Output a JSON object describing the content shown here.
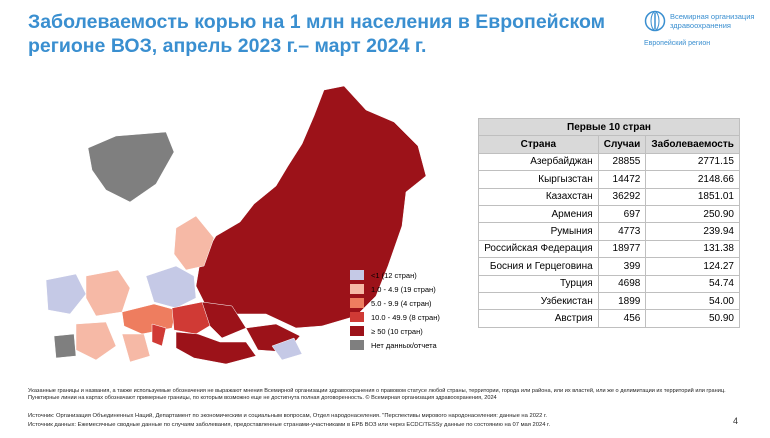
{
  "title_lines": [
    "Заболеваемость корью на 1 млн населения в Европейском",
    "регионе ВОЗ, апрель 2023 г.– март 2024 г."
  ],
  "logo": {
    "name_lines": [
      "Всемирная организация",
      "здравоохранения"
    ],
    "region": "Европейский регион"
  },
  "table": {
    "caption": "Первые 10 стран",
    "header": [
      "Страна",
      "Случаи",
      "Заболеваемость"
    ],
    "rows": [
      [
        "Азербайджан",
        "28855",
        "2771.15"
      ],
      [
        "Кыргызстан",
        "14472",
        "2148.66"
      ],
      [
        "Казахстан",
        "36292",
        "1851.01"
      ],
      [
        "Армения",
        "697",
        "250.90"
      ],
      [
        "Румыния",
        "4773",
        "239.94"
      ],
      [
        "Российская Федерация",
        "18977",
        "131.38"
      ],
      [
        "Босния и Герцеговина",
        "399",
        "124.27"
      ],
      [
        "Турция",
        "4698",
        "54.74"
      ],
      [
        "Узбекистан",
        "1899",
        "54.00"
      ],
      [
        "Австрия",
        "456",
        "50.90"
      ]
    ]
  },
  "legend": [
    {
      "label": "<1 (12 стран)",
      "color": "#c5c9e6"
    },
    {
      "label": "1.0 - 4.9 (19 стран)",
      "color": "#f6b9a6"
    },
    {
      "label": "5.0 - 9.9 (4 стран)",
      "color": "#ee7d5f"
    },
    {
      "label": "10.0 - 49.9 (8 стран)",
      "color": "#d03a35"
    },
    {
      "label": "≥ 50 (10 стран)",
      "color": "#9c1219"
    },
    {
      "label": "Нет данных/отчета",
      "color": "#7f7f7f"
    }
  ],
  "footnote": "Указанные границы и названия, а также используемые обозначения не выражают мнения Всемирной организации здравоохранения о правовом статусе любой страны, территории, города или района, или их властей, или же о делимитации их территорий или границ. Пунктирные линии на картах обозначают примерные границы, по которым возможно еще не достигнута полная договоренность. © Всемирная организация здравоохранения, 2024",
  "sources": [
    "Источник: Организация Объединенных Наций, Департамент по экономическим и социальным вопросам, Отдел народонаселения. \"Перспективы мирового народонаселения: данные на 2022 г.",
    "Источник данных: Ежемесячные сводные данные по случаям заболевания, предоставленные странами-участниками в ЕРБ ВОЗ или через ECDC/TESSy данные по состоянию на 07 мая 2024 г."
  ],
  "page_number": "4"
}
